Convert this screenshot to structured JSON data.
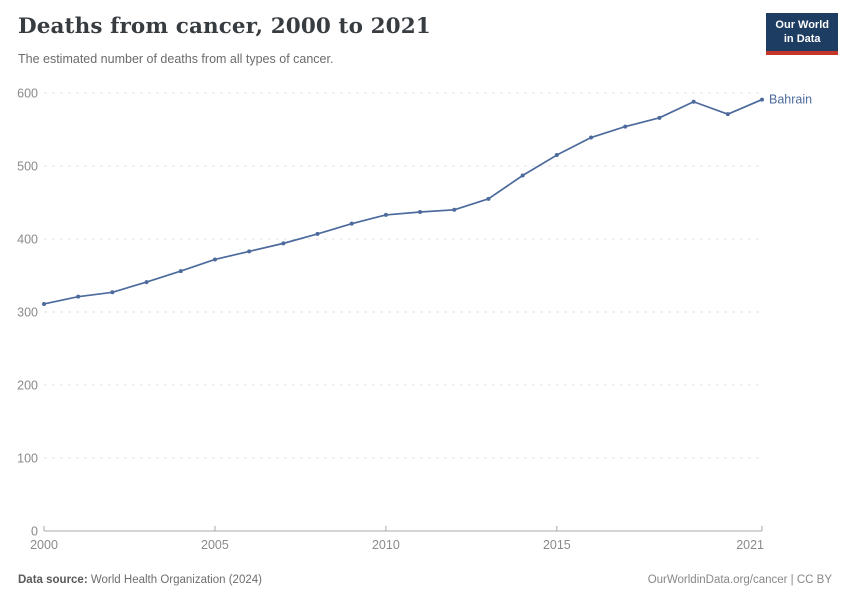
{
  "header": {
    "title": "Deaths from cancer, 2000 to 2021",
    "subtitle": "The estimated number of deaths from all types of cancer.",
    "logo": {
      "line1": "Our World",
      "line2": "in Data",
      "bg_color": "#1d3d63",
      "accent_color": "#c5352c"
    }
  },
  "chart_data": {
    "type": "line",
    "title": "Deaths from cancer, 2000 to 2021",
    "xlabel": "",
    "ylabel": "",
    "xlim": [
      2000,
      2021
    ],
    "ylim": [
      0,
      600
    ],
    "xticks": [
      2000,
      2005,
      2010,
      2015,
      2021
    ],
    "yticks": [
      0,
      100,
      200,
      300,
      400,
      500,
      600
    ],
    "grid": "horizontal-dashed",
    "legend_position": "end-of-line",
    "series": [
      {
        "name": "Bahrain",
        "color": "#4c6a9c",
        "x": [
          2000,
          2001,
          2002,
          2003,
          2004,
          2005,
          2006,
          2007,
          2008,
          2009,
          2010,
          2011,
          2012,
          2013,
          2014,
          2015,
          2016,
          2017,
          2018,
          2019,
          2020,
          2021
        ],
        "values": [
          311,
          321,
          327,
          341,
          356,
          372,
          383,
          394,
          407,
          421,
          433,
          437,
          440,
          455,
          487,
          515,
          539,
          554,
          566,
          588,
          571,
          591
        ]
      }
    ],
    "colors": {
      "grid": "#e1e1e1",
      "axis": "#a8a8a8",
      "axis_text": "#8a8a8a"
    }
  },
  "footer": {
    "source_label": "Data source:",
    "source_value": " World Health Organization (2024)",
    "credit": "OurWorldinData.org/cancer | CC BY"
  }
}
